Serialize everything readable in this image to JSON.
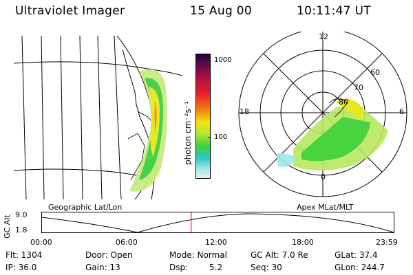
{
  "header": {
    "instrument": "Ultraviolet Imager",
    "date": "15 Aug 00",
    "time": "10:11:47 UT"
  },
  "colorbar": {
    "unit_label": "photon cm⁻²s⁻¹",
    "ticks": [
      "1000",
      "100"
    ],
    "colors": [
      "#1a0033",
      "#5a0a4a",
      "#b01040",
      "#e8202a",
      "#f07a10",
      "#f2e40a",
      "#b8e63a",
      "#3cd23a",
      "#2ec8c8",
      "#9fe8e8",
      "#e8f4f4"
    ]
  },
  "polar_plot": {
    "mlt_labels": {
      "top": "12",
      "left": "18",
      "right": "6",
      "bottom": "0"
    },
    "lat_labels": [
      "60",
      "70",
      "80"
    ]
  },
  "panel_titles": {
    "geo": "Geographic Lat/Lon",
    "apex": "Apex MLat/MLT"
  },
  "altitude_strip": {
    "axis_label": "GC Alt",
    "y_ticks": [
      "9.0",
      "1.8"
    ],
    "x_ticks": [
      "00:00",
      "06:00",
      "12:00",
      "18:00",
      "23:59"
    ],
    "current_time_fraction": 0.425
  },
  "footer": {
    "flt": "Flt: 1304",
    "door": "Door: Open",
    "mode": "Mode: Normal",
    "gcalt": "GC Alt: 7.0 Re",
    "glat": "GLat:  37.4",
    "ip": "IP: 36.0",
    "gain": "Gain: 13",
    "dsp_label": "Dsp:",
    "dsp_value": "5.2",
    "seq": "Seq: 30",
    "glon": "GLon: 244.7"
  }
}
